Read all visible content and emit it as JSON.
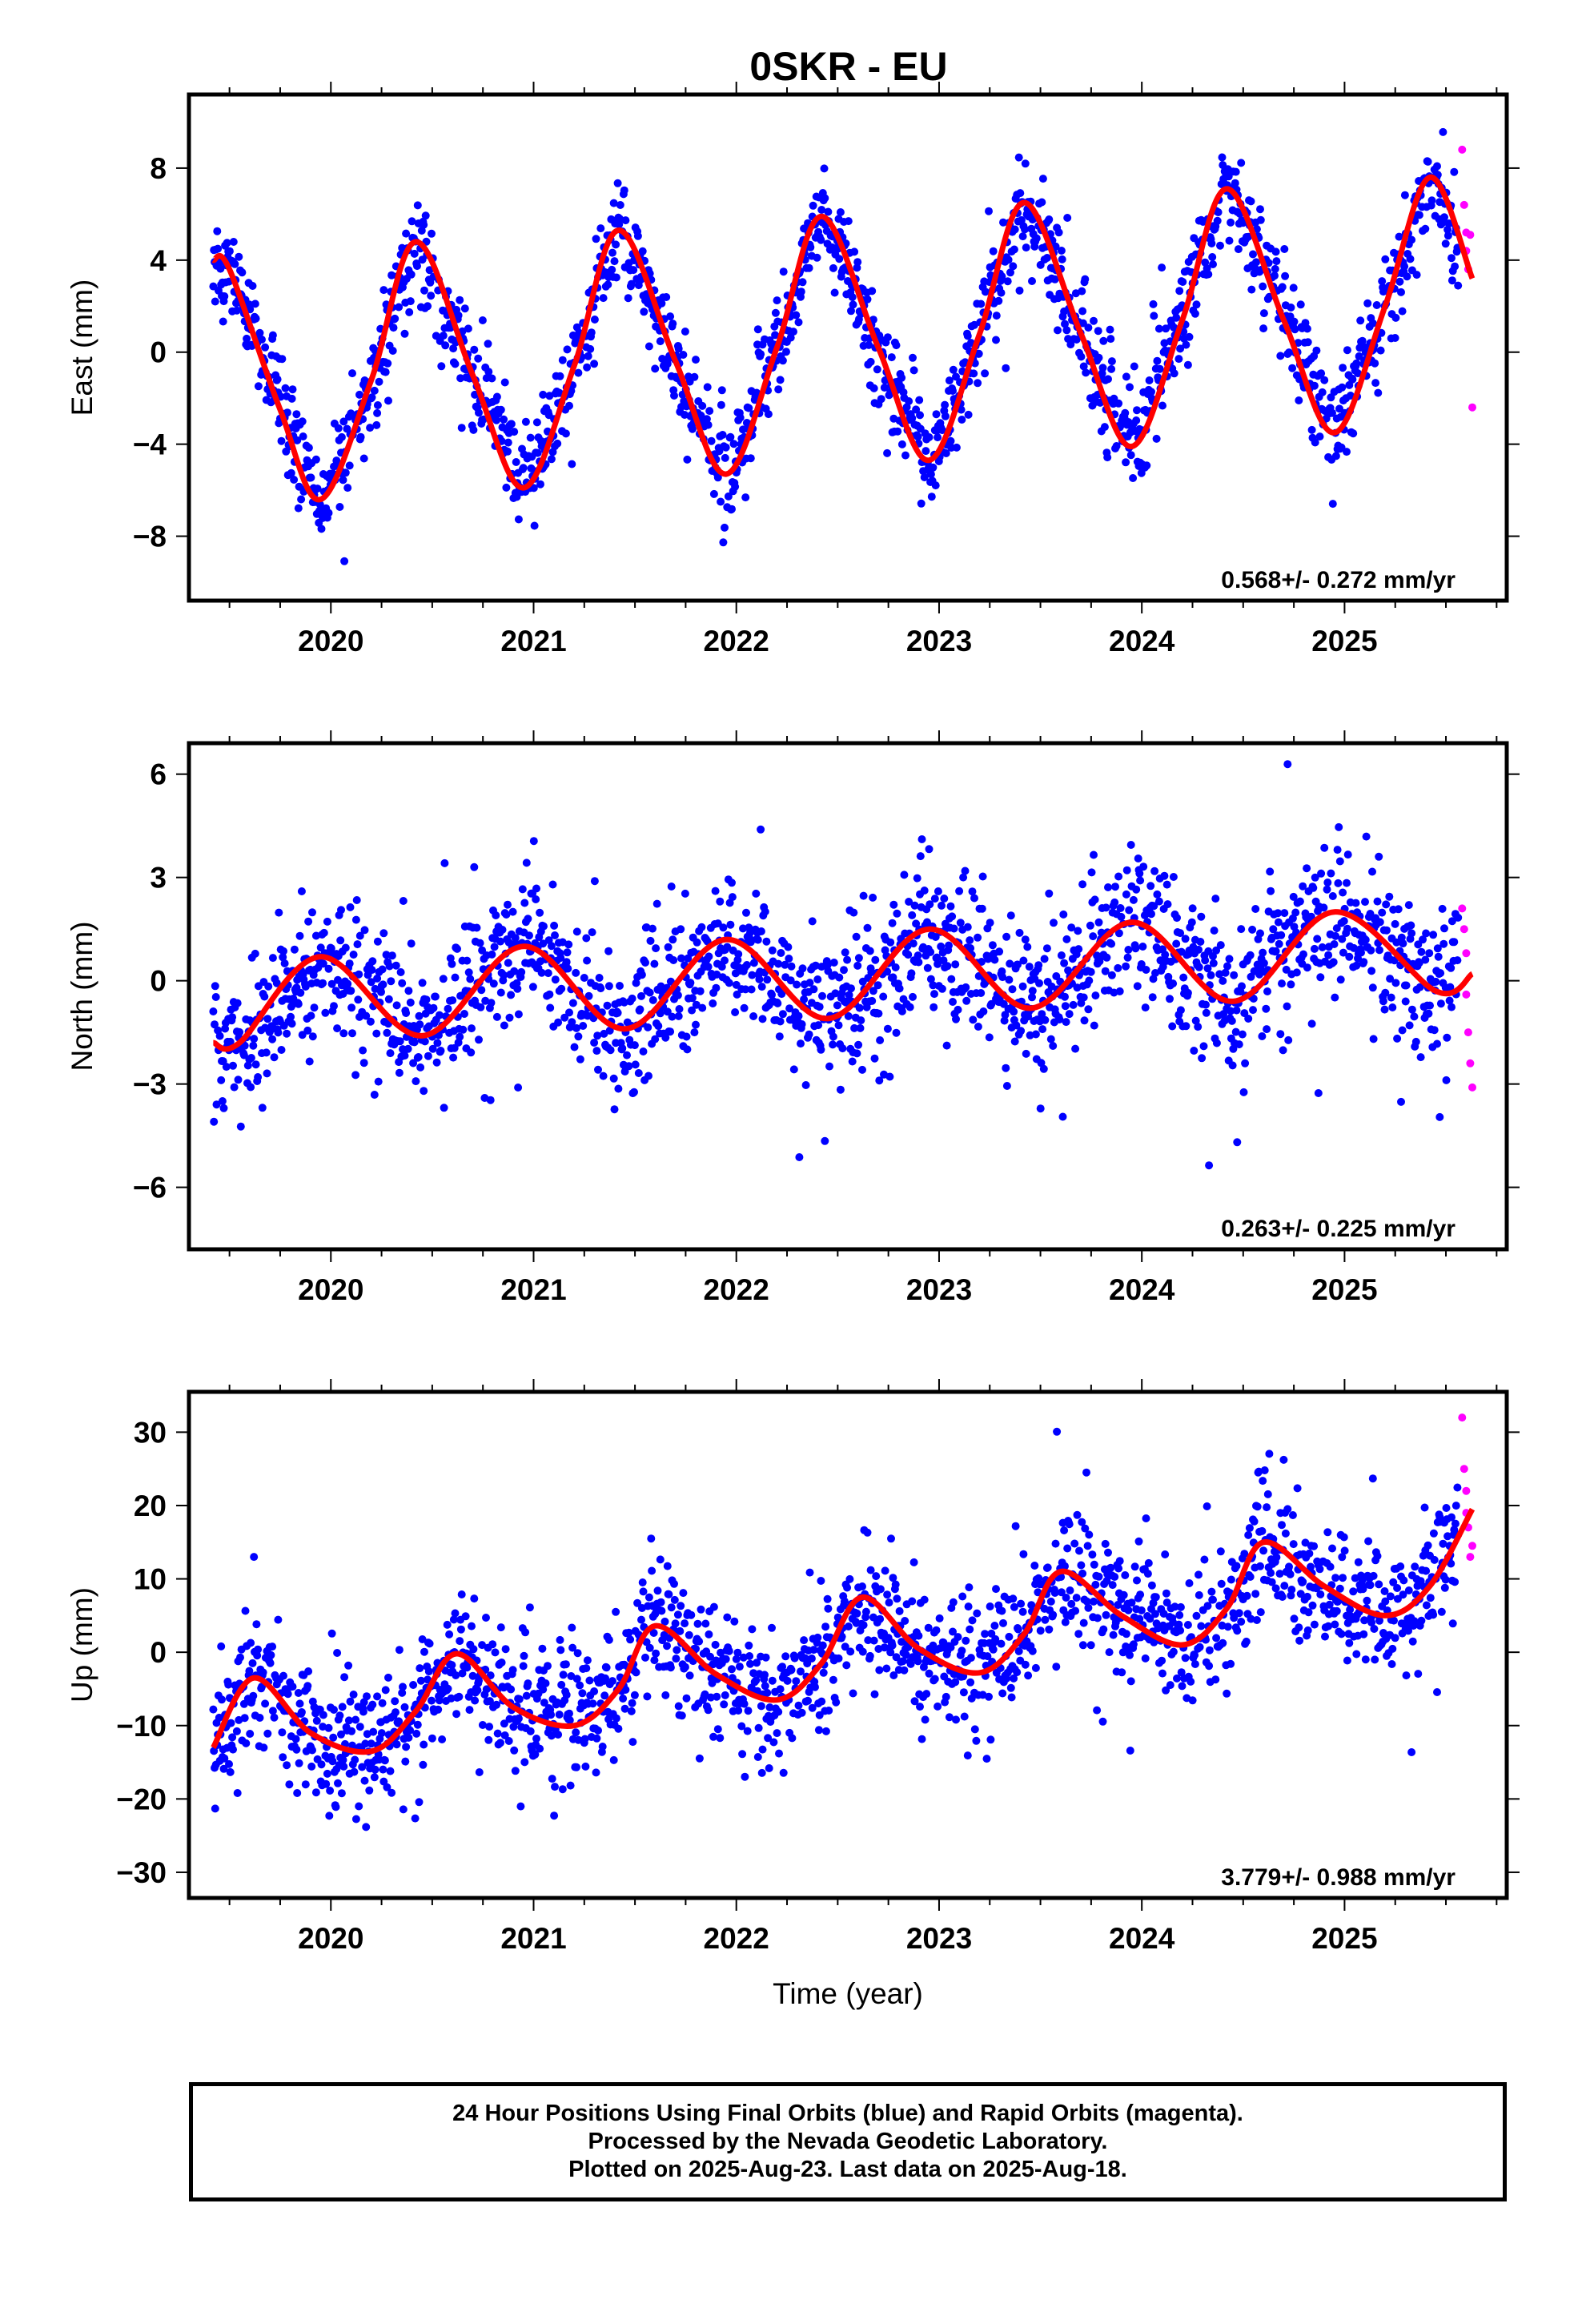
{
  "chart_data": {
    "title": "0SKR - EU",
    "type": "scatter",
    "xlabel": "Time (year)",
    "x_ticks": [
      "2020",
      "2021",
      "2022",
      "2023",
      "2024",
      "2025"
    ],
    "xlim": [
      2019.3,
      2025.8
    ],
    "data_start": 2019.42,
    "data_end": 2025.63,
    "colors": {
      "final": "#0000ff",
      "rapid": "#ff00ff",
      "model": "#ff0000"
    },
    "legend": "none",
    "grid": false,
    "panels": [
      {
        "id": "east",
        "ylabel": "East (mm)",
        "ylim": [
          -10.8,
          11.2
        ],
        "y_ticks": [
          8,
          4,
          0,
          -4,
          -8
        ],
        "y_tick_labels": [
          "8",
          "4",
          "0",
          "−4",
          "−8"
        ],
        "rate": "0.568+/- 0.272 mm/yr",
        "trend_slope": 0.568,
        "seasonal_amplitude": 5.5,
        "seasonal_peak_phase": 0.42,
        "model_offset": -1.0,
        "noise": 1.1,
        "model": {
          "x": [
            2019.42,
            2019.5,
            2019.75,
            2019.95,
            2020.2,
            2020.42,
            2020.7,
            2020.95,
            2021.2,
            2021.42,
            2021.7,
            2021.95,
            2022.2,
            2022.42,
            2022.7,
            2022.95,
            2023.2,
            2023.42,
            2023.7,
            2023.95,
            2024.2,
            2024.42,
            2024.7,
            2024.95,
            2025.2,
            2025.42,
            2025.63
          ],
          "y": [
            4.0,
            3.6,
            -2.5,
            -6.4,
            -1.2,
            4.8,
            -1.0,
            -5.9,
            -0.6,
            5.3,
            -0.4,
            -5.3,
            0.2,
            5.9,
            0.2,
            -4.7,
            0.8,
            6.5,
            0.8,
            -4.1,
            1.4,
            7.1,
            1.4,
            -3.5,
            2.0,
            7.6,
            3.2
          ]
        },
        "rapid": {
          "x": [
            2025.58,
            2025.59,
            2025.6,
            2025.6,
            2025.61,
            2025.62,
            2025.63
          ],
          "y": [
            8.8,
            6.4,
            5.2,
            4.4,
            3.6,
            5.1,
            -2.4
          ]
        }
      },
      {
        "id": "north",
        "ylabel": "North (mm)",
        "ylim": [
          -7.8,
          6.9
        ],
        "y_ticks": [
          6,
          3,
          0,
          -3,
          -6
        ],
        "y_tick_labels": [
          "6",
          "3",
          "0",
          "−3",
          "−6"
        ],
        "rate": "0.263+/- 0.225 mm/yr",
        "trend_slope": 0.263,
        "seasonal_amplitude": 1.2,
        "seasonal_peak_phase": 0.92,
        "model_offset": -0.6,
        "noise": 1.0,
        "model": {
          "x": [
            2019.42,
            2019.55,
            2019.95,
            2020.45,
            2020.95,
            2021.45,
            2021.95,
            2022.45,
            2022.95,
            2023.45,
            2023.95,
            2024.45,
            2024.95,
            2025.45,
            2025.63
          ],
          "y": [
            -1.8,
            -1.8,
            0.7,
            -1.6,
            1.0,
            -1.4,
            1.2,
            -1.1,
            1.5,
            -0.8,
            1.7,
            -0.6,
            2.0,
            -0.3,
            0.2
          ]
        },
        "rapid": {
          "x": [
            2025.58,
            2025.59,
            2025.6,
            2025.6,
            2025.61,
            2025.62,
            2025.63
          ],
          "y": [
            2.1,
            1.5,
            0.8,
            -0.4,
            -1.5,
            -2.4,
            -3.1
          ]
        }
      },
      {
        "id": "up",
        "ylabel": "Up (mm)",
        "ylim": [
          -33.5,
          35.5
        ],
        "y_ticks": [
          30,
          20,
          10,
          0,
          -10,
          -20,
          -30
        ],
        "y_tick_labels": [
          "30",
          "20",
          "10",
          "0",
          "−10",
          "−20",
          "−30"
        ],
        "rate": "3.779+/- 0.988 mm/yr",
        "trend_slope": 3.779,
        "seasonal_amplitude": 5.5,
        "seasonal_peak_phase": 0.6,
        "model_offset": -9.0,
        "noise": 4.5,
        "model": {
          "x": [
            2019.42,
            2019.62,
            2019.9,
            2020.2,
            2020.42,
            2020.62,
            2020.9,
            2021.2,
            2021.42,
            2021.6,
            2021.9,
            2022.2,
            2022.42,
            2022.62,
            2022.9,
            2023.2,
            2023.42,
            2023.6,
            2023.9,
            2024.2,
            2024.42,
            2024.6,
            2024.9,
            2025.2,
            2025.42,
            2025.63
          ],
          "y": [
            -13.0,
            -3.5,
            -11.0,
            -13.5,
            -8.0,
            -0.2,
            -7.5,
            -10.0,
            -5.0,
            3.6,
            -3.0,
            -6.5,
            -1.5,
            7.5,
            0.5,
            -2.8,
            2.5,
            11.0,
            5.0,
            1.0,
            6.0,
            15.0,
            9.0,
            5.0,
            9.0,
            19.5
          ]
        },
        "rapid": {
          "x": [
            2025.58,
            2025.59,
            2025.6,
            2025.6,
            2025.61,
            2025.62,
            2025.63
          ],
          "y": [
            32.0,
            25.0,
            22.0,
            19.0,
            17.0,
            13.0,
            14.5
          ]
        }
      }
    ]
  },
  "footer": {
    "line1": "24 Hour Positions Using Final Orbits (blue) and Rapid Orbits (magenta).",
    "line2": "Processed by the Nevada Geodetic Laboratory.",
    "line3": "Plotted on 2025-Aug-23. Last data on 2025-Aug-18."
  }
}
